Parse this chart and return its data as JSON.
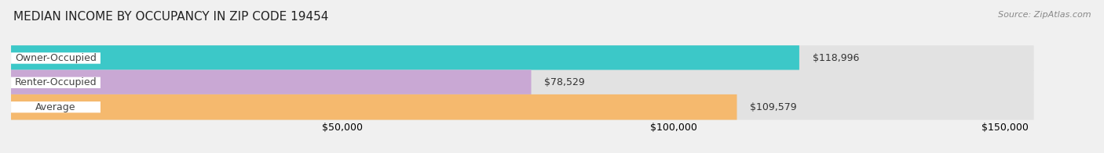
{
  "title": "MEDIAN INCOME BY OCCUPANCY IN ZIP CODE 19454",
  "source": "Source: ZipAtlas.com",
  "categories": [
    "Owner-Occupied",
    "Renter-Occupied",
    "Average"
  ],
  "values": [
    118996,
    78529,
    109579
  ],
  "bar_colors": [
    "#3cc8c8",
    "#c9a8d4",
    "#f5b96e"
  ],
  "value_labels": [
    "$118,996",
    "$78,529",
    "$109,579"
  ],
  "xlim": [
    0,
    160000
  ],
  "xticks": [
    0,
    50000,
    100000,
    150000
  ],
  "xtick_labels": [
    "",
    "$50,000",
    "$100,000",
    "$150,000"
  ],
  "background_color": "#f0f0f0",
  "bar_bg_color": "#e2e2e2",
  "title_fontsize": 11,
  "source_fontsize": 8,
  "label_fontsize": 9,
  "value_fontsize": 9,
  "bar_height": 0.52
}
